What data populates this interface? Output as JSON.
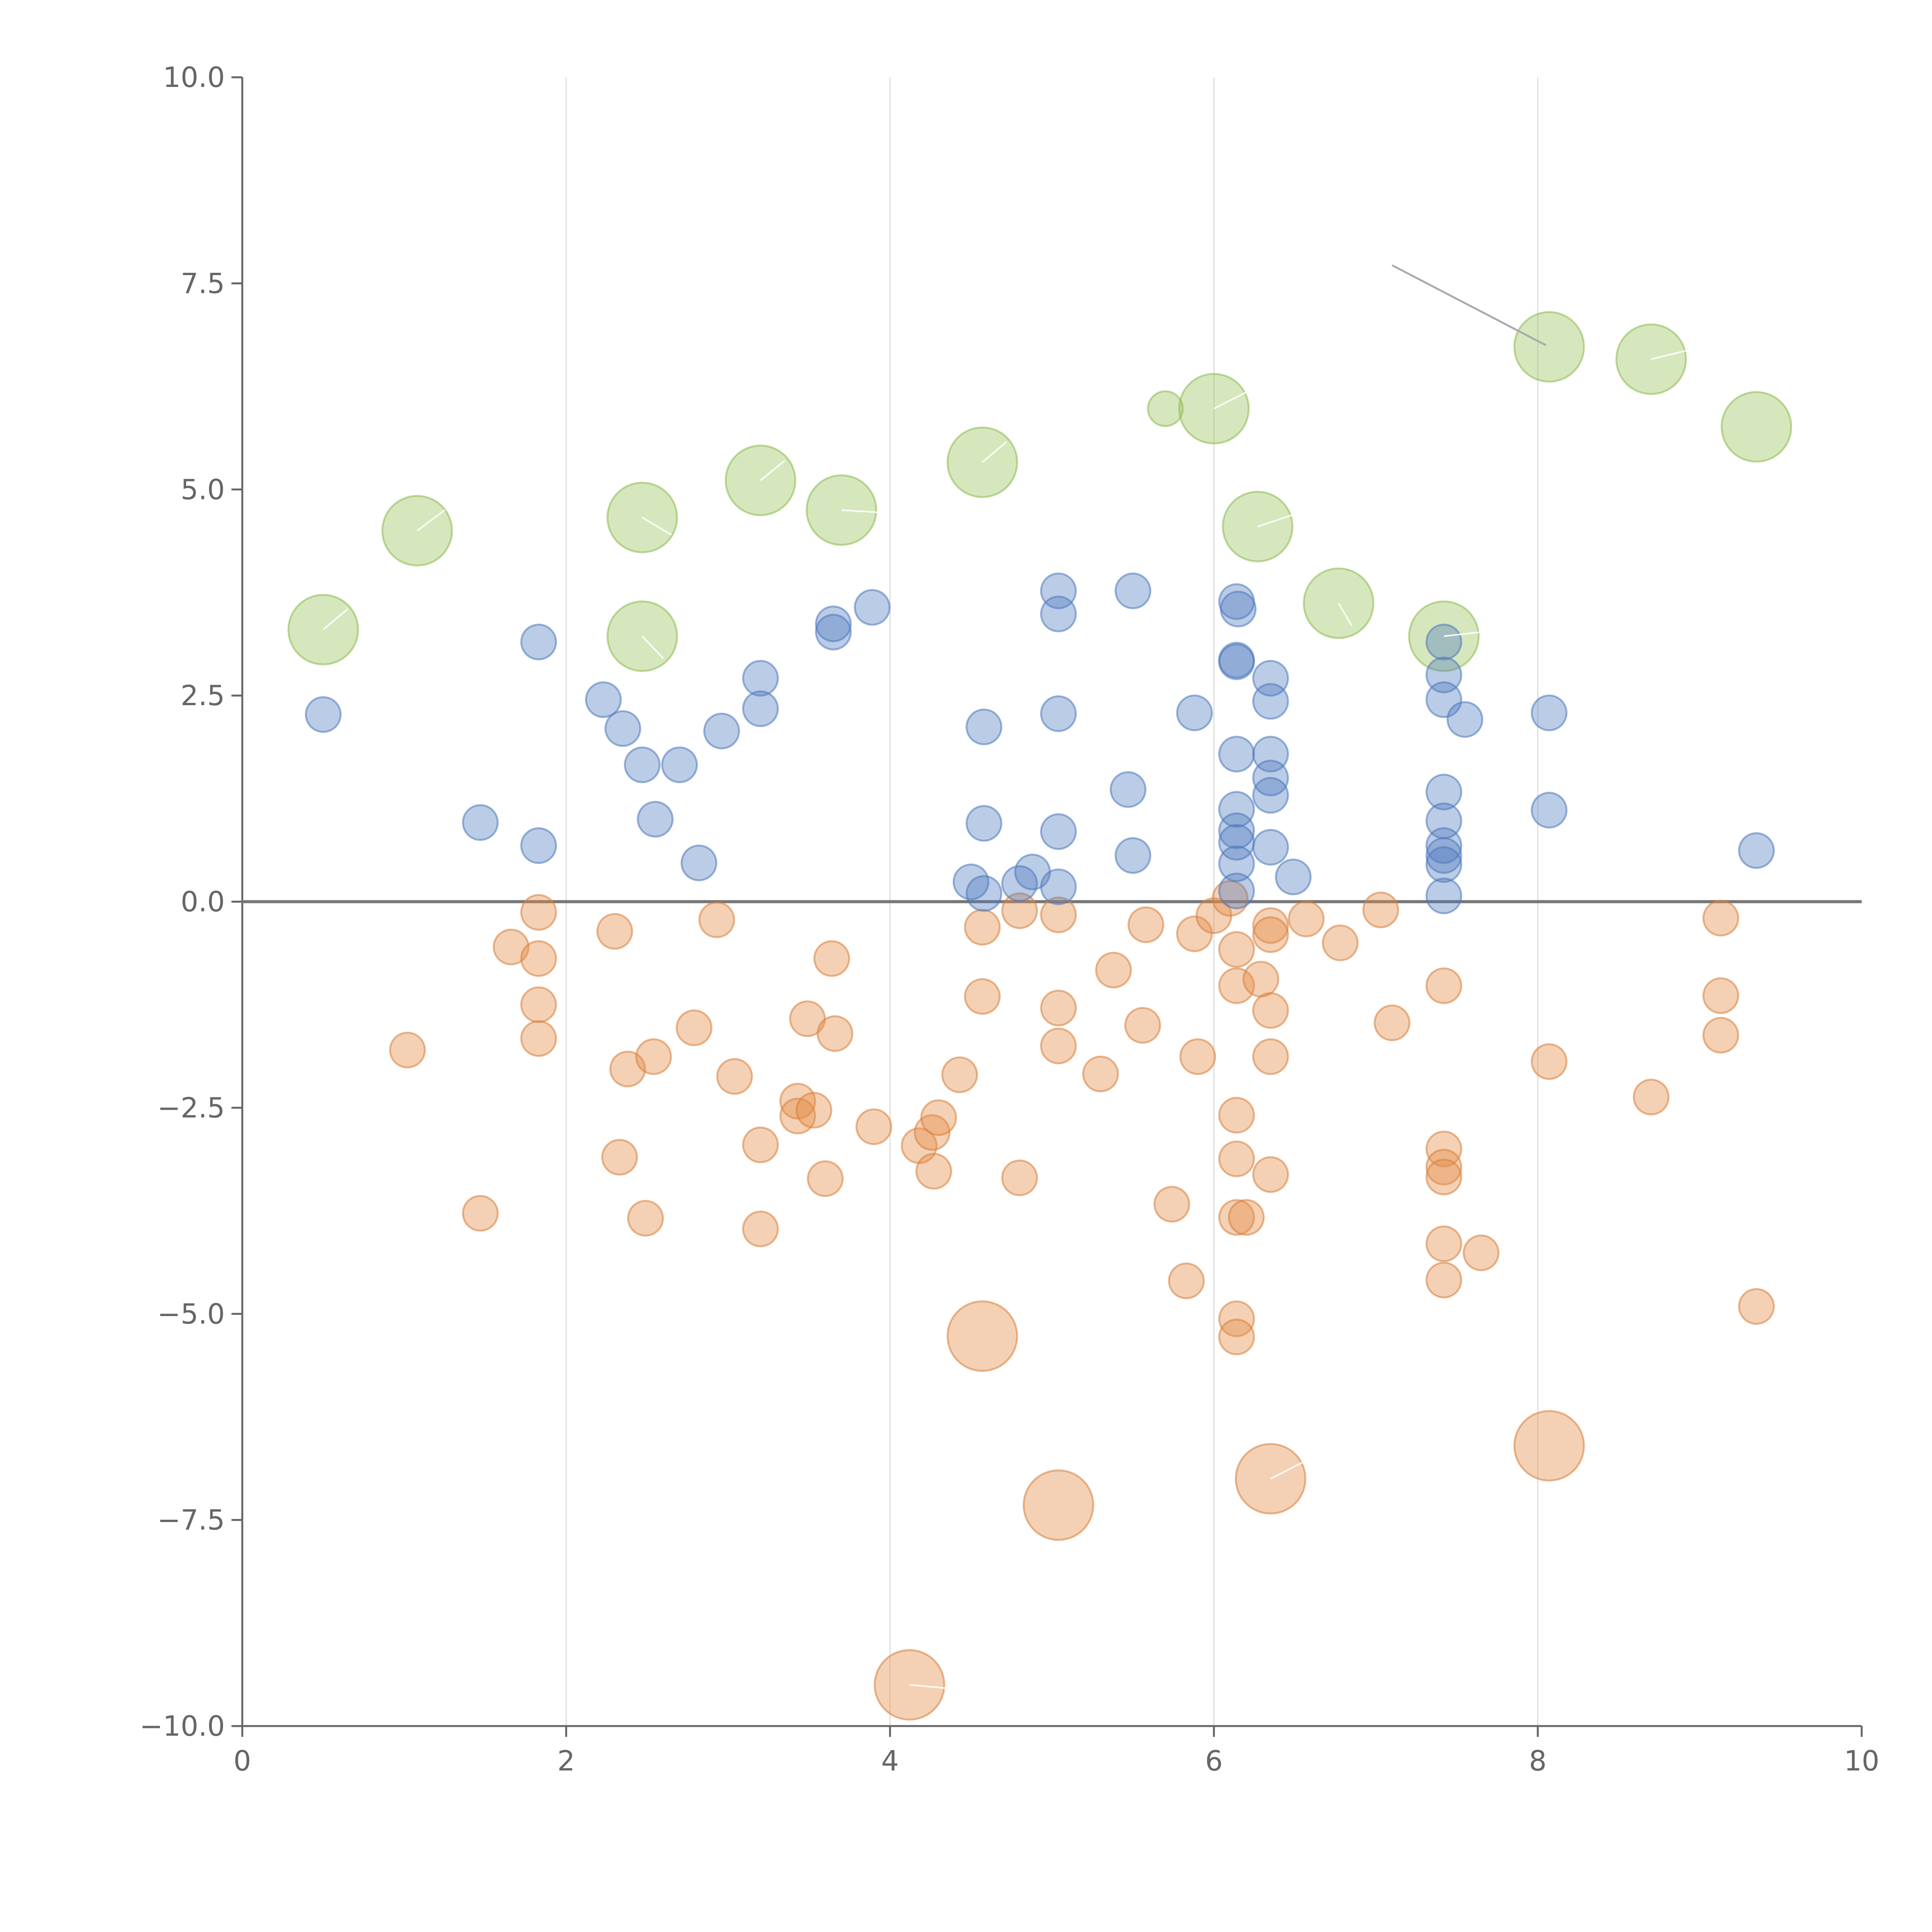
{
  "chart_data": {
    "type": "scatter",
    "title": "",
    "xlabel": "",
    "ylabel": "",
    "xlim": [
      0,
      10
    ],
    "ylim": [
      -10,
      10
    ],
    "x_ticks": [
      0,
      2,
      4,
      6,
      8,
      10
    ],
    "x_tick_labels": [
      "0",
      "2",
      "4",
      "6",
      "8",
      "10"
    ],
    "y_ticks": [
      10,
      7.5,
      5,
      2.5,
      0,
      -2.5,
      -5,
      -7.5,
      -10
    ],
    "y_tick_labels": [
      "10.0",
      "7.5",
      "5.0",
      "2.5",
      "0.0",
      "−2.5",
      "−5.0",
      "−7.5",
      "−10.0"
    ],
    "grid": "vertical",
    "zero_line": true,
    "colors": {
      "blue": "#4c78be",
      "orange": "#e48c46",
      "green": "#9bc35a",
      "axis": "#666666"
    },
    "series": [
      {
        "name": "blue",
        "color": "#4c78be",
        "points": [
          [
            0.5,
            2.27
          ],
          [
            1.47,
            0.96
          ],
          [
            1.83,
            3.15
          ],
          [
            1.83,
            0.68
          ],
          [
            2.23,
            2.45
          ],
          [
            2.35,
            2.1
          ],
          [
            2.47,
            1.66
          ],
          [
            2.55,
            1.0
          ],
          [
            2.7,
            1.66
          ],
          [
            2.82,
            0.47
          ],
          [
            2.96,
            2.07
          ],
          [
            3.2,
            2.71
          ],
          [
            3.2,
            2.34
          ],
          [
            3.65,
            3.37
          ],
          [
            3.65,
            3.27
          ],
          [
            3.89,
            3.57
          ],
          [
            4.5,
            0.24
          ],
          [
            4.58,
            2.12
          ],
          [
            4.58,
            0.95
          ],
          [
            4.58,
            0.1
          ],
          [
            4.8,
            0.22
          ],
          [
            4.88,
            0.36
          ],
          [
            5.04,
            3.77
          ],
          [
            5.04,
            3.49
          ],
          [
            5.04,
            2.28
          ],
          [
            5.04,
            0.85
          ],
          [
            5.04,
            0.18
          ],
          [
            5.47,
            1.36
          ],
          [
            5.5,
            3.77
          ],
          [
            5.5,
            0.56
          ],
          [
            5.88,
            2.29
          ],
          [
            6.14,
            3.64
          ],
          [
            6.15,
            3.55
          ],
          [
            6.14,
            2.93
          ],
          [
            6.14,
            2.91
          ],
          [
            6.14,
            1.79
          ],
          [
            6.14,
            1.12
          ],
          [
            6.14,
            0.86
          ],
          [
            6.14,
            0.72
          ],
          [
            6.14,
            0.46
          ],
          [
            6.14,
            0.13
          ],
          [
            6.35,
            2.71
          ],
          [
            6.35,
            2.43
          ],
          [
            6.35,
            1.79
          ],
          [
            6.35,
            1.5
          ],
          [
            6.35,
            1.29
          ],
          [
            6.35,
            0.66
          ],
          [
            6.49,
            0.3
          ],
          [
            7.42,
            3.15
          ],
          [
            7.42,
            2.75
          ],
          [
            7.42,
            2.45
          ],
          [
            7.42,
            1.33
          ],
          [
            7.42,
            0.98
          ],
          [
            7.42,
            0.68
          ],
          [
            7.42,
            0.56
          ],
          [
            7.42,
            0.45
          ],
          [
            7.42,
            0.07
          ],
          [
            7.55,
            2.21
          ],
          [
            8.07,
            2.29
          ],
          [
            8.07,
            1.11
          ],
          [
            9.35,
            0.62
          ]
        ]
      },
      {
        "name": "orange",
        "color": "#e48c46",
        "points": [
          [
            1.02,
            -1.8
          ],
          [
            1.47,
            -3.78
          ],
          [
            1.66,
            -0.55
          ],
          [
            1.83,
            -0.13
          ],
          [
            1.83,
            -0.69
          ],
          [
            1.83,
            -1.25
          ],
          [
            1.83,
            -1.66
          ],
          [
            2.3,
            -0.36
          ],
          [
            2.33,
            -3.1
          ],
          [
            2.38,
            -2.03
          ],
          [
            2.49,
            -3.84
          ],
          [
            2.54,
            -1.88
          ],
          [
            2.79,
            -1.53
          ],
          [
            2.93,
            -0.22
          ],
          [
            3.04,
            -2.12
          ],
          [
            3.2,
            -2.95
          ],
          [
            3.2,
            -3.97
          ],
          [
            3.43,
            -2.42
          ],
          [
            3.43,
            -2.6
          ],
          [
            3.49,
            -1.42
          ],
          [
            3.53,
            -2.53
          ],
          [
            3.6,
            -3.36
          ],
          [
            3.64,
            -0.69
          ],
          [
            3.66,
            -1.6
          ],
          [
            3.9,
            -2.73
          ],
          [
            4.18,
            -2.96
          ],
          [
            4.26,
            -2.8
          ],
          [
            4.27,
            -3.27
          ],
          [
            4.3,
            -2.62
          ],
          [
            4.43,
            -2.1
          ],
          [
            4.57,
            -0.31
          ],
          [
            4.57,
            -1.15
          ],
          [
            4.8,
            -3.35
          ],
          [
            4.8,
            -0.11
          ],
          [
            5.04,
            -0.16
          ],
          [
            5.04,
            -1.29
          ],
          [
            5.04,
            -1.75
          ],
          [
            5.3,
            -2.09
          ],
          [
            5.38,
            -0.83
          ],
          [
            5.56,
            -1.5
          ],
          [
            5.58,
            -0.28
          ],
          [
            5.74,
            -3.67
          ],
          [
            5.83,
            -4.6
          ],
          [
            5.88,
            -0.39
          ],
          [
            5.9,
            -1.88
          ],
          [
            6.0,
            -0.17
          ],
          [
            6.1,
            0.04
          ],
          [
            6.14,
            -0.58
          ],
          [
            6.14,
            -1.02
          ],
          [
            6.14,
            -2.59
          ],
          [
            6.14,
            -3.12
          ],
          [
            6.14,
            -3.83
          ],
          [
            6.2,
            -3.83
          ],
          [
            6.14,
            -5.06
          ],
          [
            6.14,
            -5.28
          ],
          [
            6.29,
            -0.94
          ],
          [
            6.35,
            -0.29
          ],
          [
            6.35,
            -0.4
          ],
          [
            6.35,
            -1.32
          ],
          [
            6.35,
            -1.88
          ],
          [
            6.35,
            -3.31
          ],
          [
            6.57,
            -0.21
          ],
          [
            6.78,
            -0.5
          ],
          [
            7.03,
            -0.1
          ],
          [
            7.1,
            -1.47
          ],
          [
            7.42,
            -1.02
          ],
          [
            7.42,
            -3.0
          ],
          [
            7.42,
            -3.22
          ],
          [
            7.42,
            -3.34
          ],
          [
            7.42,
            -4.15
          ],
          [
            7.42,
            -4.59
          ],
          [
            7.65,
            -4.26
          ],
          [
            8.07,
            -1.94
          ],
          [
            8.7,
            -2.37
          ],
          [
            9.13,
            -0.2
          ],
          [
            9.13,
            -1.14
          ],
          [
            9.13,
            -1.62
          ],
          [
            9.35,
            -4.91
          ]
        ]
      },
      {
        "name": "orange-large",
        "color": "#e48c46",
        "points": [
          [
            4.57,
            -5.27
          ],
          [
            5.04,
            -7.32
          ],
          [
            6.35,
            -7.0
          ],
          [
            8.07,
            -6.6
          ],
          [
            4.12,
            -9.5
          ]
        ]
      },
      {
        "name": "green",
        "color": "#9bc35a",
        "points": [
          [
            0.5,
            3.3
          ],
          [
            1.08,
            4.5
          ],
          [
            2.47,
            4.66
          ],
          [
            2.47,
            3.22
          ],
          [
            3.2,
            5.11
          ],
          [
            3.7,
            4.75
          ],
          [
            4.57,
            5.33
          ],
          [
            6.0,
            5.98
          ],
          [
            6.27,
            4.55
          ],
          [
            6.77,
            3.62
          ],
          [
            7.42,
            3.22
          ],
          [
            8.07,
            6.73
          ],
          [
            8.7,
            6.58
          ],
          [
            9.35,
            5.76
          ]
        ]
      },
      {
        "name": "green-small",
        "color": "#9bc35a",
        "points": [
          [
            5.7,
            5.98
          ]
        ]
      }
    ]
  }
}
